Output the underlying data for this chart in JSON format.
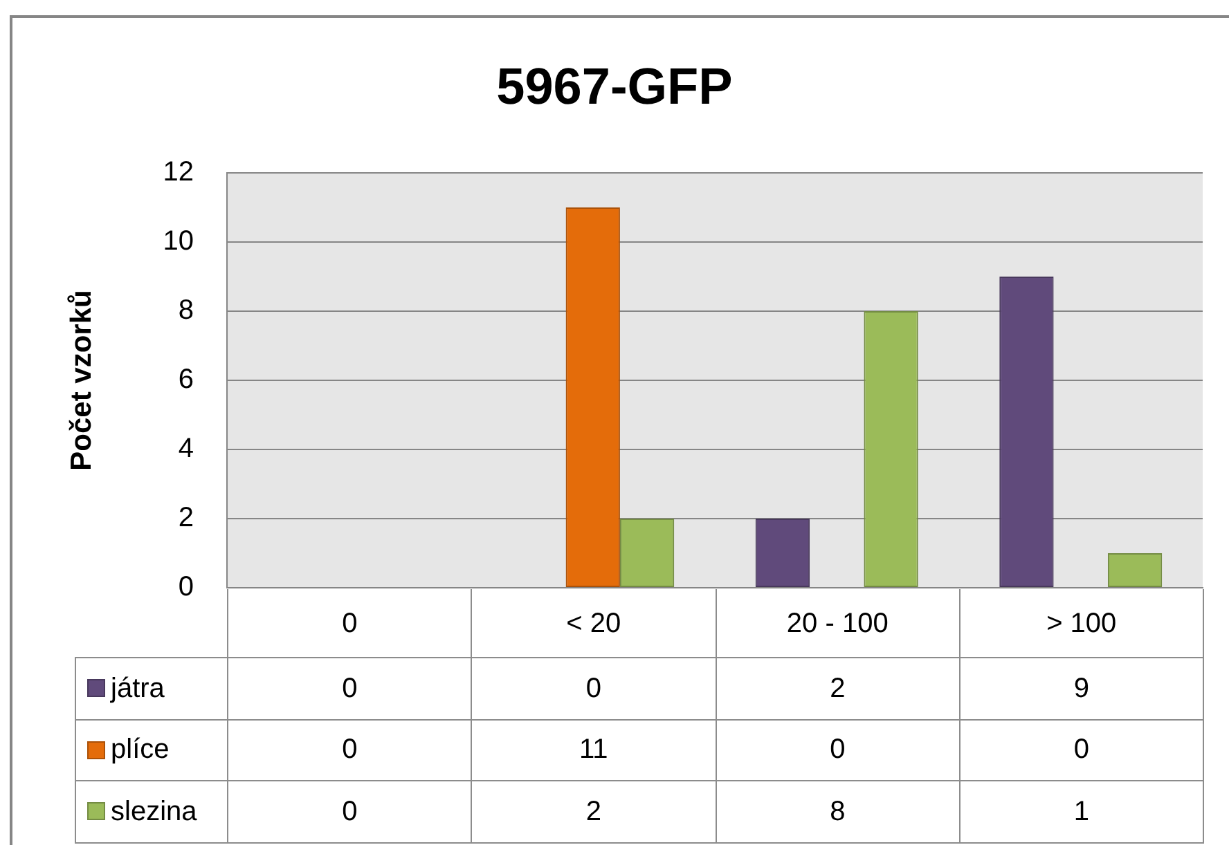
{
  "chart_data": {
    "type": "bar",
    "title": "5967-GFP",
    "ylabel": "Počet vzorků",
    "categories": [
      "0",
      "< 20",
      "20 - 100",
      "> 100"
    ],
    "series": [
      {
        "name": "játra",
        "color": "#604a7b",
        "values": [
          0,
          0,
          2,
          9
        ]
      },
      {
        "name": "plíce",
        "color": "#e46c0a",
        "values": [
          0,
          11,
          0,
          0
        ]
      },
      {
        "name": "slezina",
        "color": "#9bbb59",
        "values": [
          0,
          2,
          8,
          1
        ]
      }
    ],
    "ylim": [
      0,
      12
    ],
    "yticks": [
      0,
      2,
      4,
      6,
      8,
      10,
      12
    ],
    "grid": "y",
    "legend": "bottom",
    "data_labels": true
  }
}
